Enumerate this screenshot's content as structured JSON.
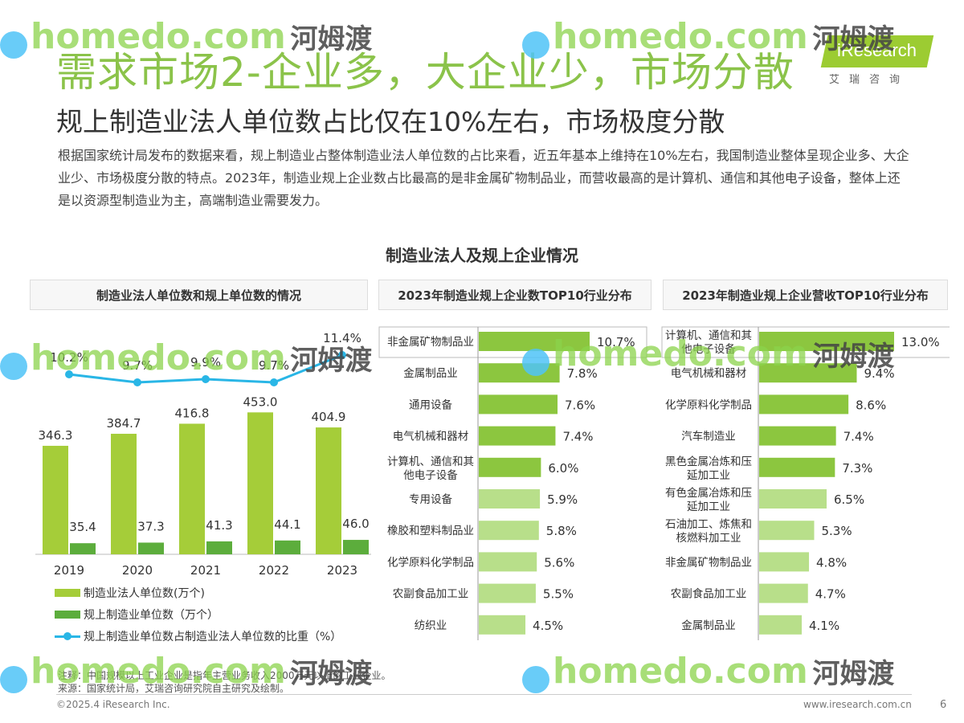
{
  "header": {
    "title": "需求市场2-企业多，大企业少，市场分散",
    "subtitle": "规上制造业法人单位数占比仅在10%左右，市场极度分散",
    "description": "根据国家统计局发布的数据来看，规上制造业占整体制造业法人单位数的占比来看，近五年基本上维持在10%左右，我国制造业整体呈现企业多、大企业少、市场极度分散的特点。2023年，制造业规上企业数占比最高的是非金属矿物制品业，而营收最高的是计算机、通信和其他电子设备，整体上还是以资源型制造业为主，高端制造业需要发力。"
  },
  "logo": {
    "brand": "iResearch",
    "cn": "艾瑞咨询"
  },
  "section_title": "制造业法人及规上企业情况",
  "panels": {
    "left_title": "制造业法人单位数和规上单位数的情况",
    "middle_title": "2023年制造业规上企业数TOP10行业分布",
    "right_title": "2023年制造业规上企业营收TOP10行业分布"
  },
  "legend": {
    "series1": "制造业法人单位数(万个)",
    "series2": "规上制造业单位数（万个）",
    "series3": "规上制造业单位数占制造业法人单位数的比重（%）"
  },
  "colors": {
    "bar_light": "#a5cd39",
    "bar_dark": "#5cad3c",
    "line": "#29b6e6",
    "hbar_top": "#8cc63f",
    "hbar_low": "#b8df8a",
    "title": "#8bc34a"
  },
  "chart_data": [
    {
      "type": "bar",
      "categories": [
        "2019",
        "2020",
        "2021",
        "2022",
        "2023"
      ],
      "series": [
        {
          "name": "制造业法人单位数(万个)",
          "values": [
            346.3,
            384.7,
            416.8,
            453.0,
            404.9
          ],
          "labels": [
            "346.3",
            "384.7",
            "416.8",
            "453.0",
            "404.9"
          ]
        },
        {
          "name": "规上制造业单位数（万个）",
          "values": [
            35.4,
            37.3,
            41.3,
            44.1,
            46.0
          ],
          "labels": [
            "35.4",
            "37.3",
            "41.3",
            "44.1",
            "46.0"
          ]
        },
        {
          "name": "规上制造业单位数占制造业法人单位数的比重（%）",
          "type": "line",
          "values": [
            10.2,
            9.7,
            9.9,
            9.7,
            11.4
          ],
          "labels": [
            "10.2%",
            "9.7%",
            "9.9%",
            "9.7%",
            "11.4%"
          ]
        }
      ]
    },
    {
      "type": "bar",
      "orientation": "horizontal",
      "categories": [
        "非金属矿物制品业",
        "金属制品业",
        "通用设备",
        "电气机械和器材",
        "计算机、通信和其他电子设备",
        "专用设备",
        "橡胶和塑料制品业",
        "化学原料化学制品",
        "农副食品加工业",
        "纺织业"
      ],
      "category_lines": [
        [
          "非金属矿物制品业"
        ],
        [
          "金属制品业"
        ],
        [
          "通用设备"
        ],
        [
          "电气机械和器材"
        ],
        [
          "计算机、通信和其",
          "他电子设备"
        ],
        [
          "专用设备"
        ],
        [
          "橡胶和塑料制品业"
        ],
        [
          "化学原料化学制品"
        ],
        [
          "农副食品加工业"
        ],
        [
          "纺织业"
        ]
      ],
      "values": [
        10.7,
        7.8,
        7.6,
        7.4,
        6.0,
        5.9,
        5.8,
        5.6,
        5.5,
        4.5
      ],
      "labels": [
        "10.7%",
        "7.8%",
        "7.6%",
        "7.4%",
        "6.0%",
        "5.9%",
        "5.8%",
        "5.6%",
        "5.5%",
        "4.5%"
      ]
    },
    {
      "type": "bar",
      "orientation": "horizontal",
      "categories": [
        "计算机、通信和其他电子设备",
        "电气机械和器材",
        "化学原料化学制品",
        "汽车制造业",
        "黑色金属冶炼和压延加工业",
        "有色金属冶炼和压延加工业",
        "石油加工、炼焦和核燃料加工业",
        "非金属矿物制品业",
        "农副食品加工业",
        "金属制品业"
      ],
      "category_lines": [
        [
          "计算机、通信和其",
          "他电子设备"
        ],
        [
          "电气机械和器材"
        ],
        [
          "化学原料化学制品"
        ],
        [
          "汽车制造业"
        ],
        [
          "黑色金属冶炼和压",
          "延加工业"
        ],
        [
          "有色金属冶炼和压",
          "延加工业"
        ],
        [
          "石油加工、炼焦和",
          "核燃料加工业"
        ],
        [
          "非金属矿物制品业"
        ],
        [
          "农副食品加工业"
        ],
        [
          "金属制品业"
        ]
      ],
      "values": [
        13.0,
        9.4,
        8.6,
        7.4,
        7.3,
        6.5,
        5.3,
        4.8,
        4.7,
        4.1
      ],
      "labels": [
        "13.0%",
        "9.4%",
        "8.6%",
        "7.4%",
        "7.3%",
        "6.5%",
        "5.3%",
        "4.8%",
        "4.7%",
        "4.1%"
      ]
    }
  ],
  "notes": {
    "note": "注释：中国规模以上工业企业是指年主营业务收入2000万元以上的工业企业。",
    "source": "来源：国家统计局，艾瑞咨询研究院自主研究及绘制。"
  },
  "footer": {
    "copyright": "©2025.4 iResearch Inc.",
    "website": "www.iresearch.com.cn",
    "page": "6"
  },
  "watermark": {
    "site": "homedo.com",
    "cn": "河姆渡"
  }
}
